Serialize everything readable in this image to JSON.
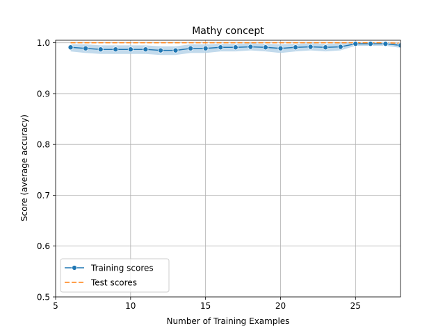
{
  "chart_data": {
    "type": "line",
    "title": "Mathy concept",
    "xlabel": "Number of Training Examples",
    "ylabel": "Score (average accuracy)",
    "xlim": [
      5,
      28
    ],
    "ylim": [
      0.5,
      1.005
    ],
    "xticks": [
      5,
      10,
      15,
      20,
      25
    ],
    "yticks": [
      0.5,
      0.6,
      0.7,
      0.8,
      0.9,
      1.0
    ],
    "ytick_labels": [
      "0.5",
      "0.6",
      "0.7",
      "0.8",
      "0.9",
      "1.0"
    ],
    "grid": true,
    "legend_position": "lower-left",
    "x": [
      6,
      7,
      8,
      9,
      10,
      11,
      12,
      13,
      14,
      15,
      16,
      17,
      18,
      19,
      20,
      21,
      22,
      23,
      24,
      25,
      26,
      27,
      28
    ],
    "series": [
      {
        "name": "Training scores",
        "color": "#1f77b4",
        "marker": "circle",
        "values": [
          0.991,
          0.989,
          0.987,
          0.987,
          0.987,
          0.987,
          0.985,
          0.985,
          0.989,
          0.989,
          0.991,
          0.991,
          0.992,
          0.991,
          0.989,
          0.991,
          0.992,
          0.991,
          0.992,
          0.998,
          0.998,
          0.998,
          0.995
        ],
        "band_low": [
          0.983,
          0.98,
          0.978,
          0.978,
          0.978,
          0.978,
          0.976,
          0.976,
          0.98,
          0.98,
          0.983,
          0.983,
          0.985,
          0.983,
          0.98,
          0.983,
          0.985,
          0.983,
          0.985,
          0.994,
          0.994,
          0.994,
          0.99
        ],
        "band_high": [
          0.997,
          0.997,
          0.995,
          0.995,
          0.995,
          0.995,
          0.993,
          0.993,
          0.997,
          0.997,
          0.998,
          0.998,
          0.999,
          0.998,
          0.997,
          0.998,
          0.999,
          0.998,
          0.999,
          1.0,
          1.0,
          1.0,
          1.0
        ],
        "band_color": "#aecde5"
      },
      {
        "name": "Test scores",
        "color": "#ff7f0e",
        "dashed": true,
        "values": [
          1.0,
          1.0,
          1.0,
          1.0,
          1.0,
          1.0,
          1.0,
          1.0,
          1.0,
          1.0,
          1.0,
          1.0,
          1.0,
          1.0,
          1.0,
          1.0,
          1.0,
          1.0,
          1.0,
          1.0,
          1.0,
          1.0,
          0.999
        ]
      }
    ]
  }
}
